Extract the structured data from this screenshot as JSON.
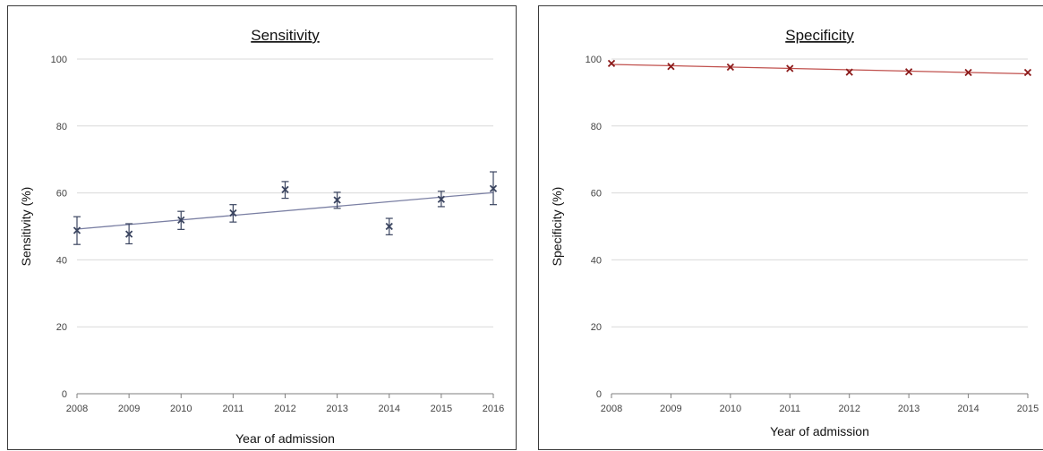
{
  "chart_data": [
    {
      "type": "scatter",
      "title": "Sensitivity",
      "xlabel": "Year of admission",
      "ylabel": "Sensitivity (%)",
      "x": [
        2008,
        2009,
        2010,
        2011,
        2012,
        2013,
        2014,
        2015,
        2016
      ],
      "xticks": [
        "2008",
        "2009",
        "2010",
        "2011",
        "2012",
        "2013",
        "2014",
        "2015",
        "2016"
      ],
      "yticks": [
        "0",
        "20",
        "40",
        "60",
        "80",
        "100"
      ],
      "ylim": [
        0,
        100
      ],
      "grid": true,
      "series": [
        {
          "values": [
            48.8,
            47.7,
            51.9,
            54.0,
            61.0,
            57.9,
            50.0,
            58.1,
            61.3
          ],
          "error_low": [
            44.6,
            44.8,
            49.1,
            51.3,
            58.4,
            55.4,
            47.5,
            55.9,
            56.5
          ],
          "error_high": [
            52.9,
            50.8,
            54.5,
            56.5,
            63.4,
            60.2,
            52.4,
            60.5,
            66.3
          ],
          "marker": "x",
          "color": "#3b4560"
        }
      ],
      "trendline": {
        "x": [
          2008,
          2016
        ],
        "y": [
          49.2,
          60.1
        ],
        "color": "#7a7fa3"
      }
    },
    {
      "type": "scatter",
      "title": "Specificity",
      "xlabel": "Year of admission",
      "ylabel": "Specificity (%)",
      "x": [
        2008,
        2009,
        2010,
        2011,
        2012,
        2013,
        2014,
        2015
      ],
      "xticks": [
        "2008",
        "2009",
        "2010",
        "2011",
        "2012",
        "2013",
        "2014",
        "2015"
      ],
      "yticks": [
        "0",
        "20",
        "40",
        "60",
        "80",
        "100"
      ],
      "ylim": [
        0,
        100
      ],
      "grid": true,
      "series": [
        {
          "values": [
            98.7,
            97.8,
            97.6,
            97.2,
            96.1,
            96.2,
            96.0,
            96.0
          ],
          "marker": "x",
          "color": "#8b1a1a"
        }
      ],
      "trendline": {
        "x": [
          2008,
          2015
        ],
        "y": [
          98.4,
          95.6
        ],
        "color": "#c0504d"
      }
    }
  ]
}
